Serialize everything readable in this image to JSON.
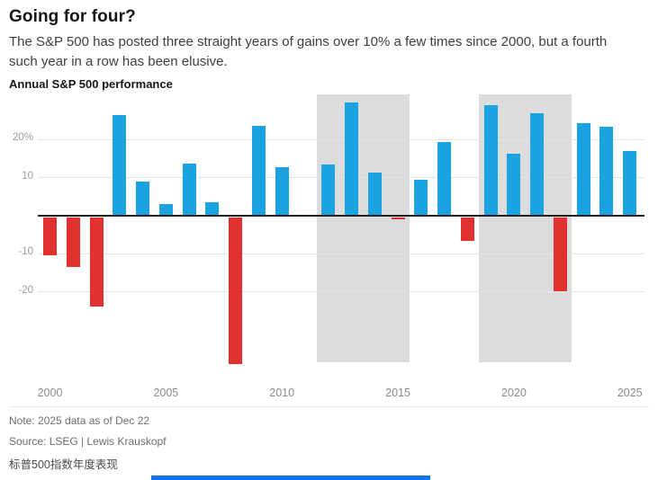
{
  "header": {
    "title": "Going for four?",
    "subtitle": "The S&P 500 has posted three straight years of gains over 10% a few times since 2000, but a fourth such year in a row has been elusive."
  },
  "chart_data": {
    "type": "bar",
    "title": "Annual S&P 500 performance",
    "unit": "%",
    "x": [
      2000,
      2001,
      2002,
      2003,
      2004,
      2005,
      2006,
      2007,
      2008,
      2009,
      2010,
      2011,
      2012,
      2013,
      2014,
      2015,
      2016,
      2017,
      2018,
      2019,
      2020,
      2021,
      2022,
      2023,
      2024,
      2025
    ],
    "values": [
      -10.1,
      -13.0,
      -23.4,
      26.4,
      9.0,
      3.0,
      13.6,
      3.5,
      -38.5,
      23.5,
      12.8,
      0.0,
      13.4,
      29.6,
      11.4,
      -0.7,
      9.5,
      19.4,
      -6.2,
      28.9,
      16.3,
      26.9,
      -19.4,
      24.2,
      23.3,
      17.0
    ],
    "ylim": [
      -40,
      32
    ],
    "yticks": [
      {
        "value": 20,
        "label": "20%"
      },
      {
        "value": 10,
        "label": "10"
      },
      {
        "value": -10,
        "label": "-10"
      },
      {
        "value": -20,
        "label": "-20"
      }
    ],
    "xticks": [
      2000,
      2005,
      2010,
      2015,
      2020,
      2025
    ],
    "zero_line": true,
    "grid": true,
    "legend": "none",
    "highlight_bands": [
      {
        "from": 2012,
        "to": 2015
      },
      {
        "from": 2019,
        "to": 2022
      }
    ],
    "colors": {
      "positive": "#1AA3E0",
      "negative": "#E0312E",
      "band": "#DCDCDC"
    }
  },
  "footer": {
    "note": "Note: 2025 data as of Dec 22",
    "source": "Source: LSEG | Lewis Krauskopf",
    "caption_cjk": "标普500指数年度表现"
  },
  "decor": {
    "bottom_strip_color": "#1473E6"
  }
}
